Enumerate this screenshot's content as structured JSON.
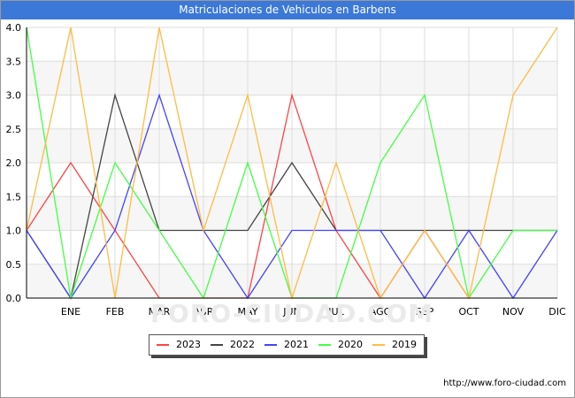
{
  "chart_data": {
    "type": "line",
    "title": "Matriculaciones de Vehiculos en Barbens",
    "categories": [
      "",
      "ENE",
      "FEB",
      "MAR",
      "ABR",
      "MAY",
      "JUN",
      "JUL",
      "AGO",
      "SEP",
      "OCT",
      "NOV",
      "DIC"
    ],
    "y_ticks": [
      "0.0",
      "0.5",
      "1.0",
      "1.5",
      "2.0",
      "2.5",
      "3.0",
      "3.5",
      "4.0"
    ],
    "ylim": [
      0,
      4
    ],
    "grid": true,
    "legend_position": "bottom",
    "watermark": "FORO-CIUDAD.COM",
    "series": [
      {
        "name": "2023",
        "color": "#ff4444",
        "values": [
          1,
          2,
          1,
          0,
          0,
          0,
          3,
          1,
          0,
          1,
          0,
          null,
          null
        ]
      },
      {
        "name": "2022",
        "color": "#444444",
        "values": [
          1,
          0,
          3,
          1,
          1,
          1,
          2,
          1,
          1,
          1,
          1,
          1,
          1
        ]
      },
      {
        "name": "2021",
        "color": "#4444ff",
        "values": [
          1,
          0,
          1,
          3,
          1,
          0,
          1,
          1,
          1,
          0,
          1,
          0,
          1
        ]
      },
      {
        "name": "2020",
        "color": "#44ff44",
        "values": [
          4,
          0,
          2,
          1,
          0,
          2,
          0,
          0,
          2,
          3,
          0,
          1,
          1
        ]
      },
      {
        "name": "2019",
        "color": "#ffbb44",
        "values": [
          1,
          4,
          0,
          4,
          1,
          3,
          0,
          2,
          0,
          1,
          0,
          3,
          4
        ]
      }
    ]
  },
  "source": "http://www.foro-ciudad.com"
}
